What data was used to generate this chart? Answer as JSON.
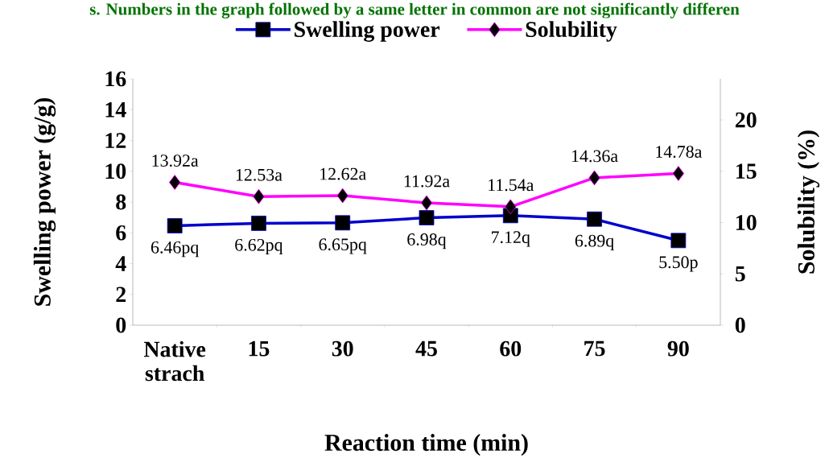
{
  "chart_data": {
    "type": "line",
    "annotations": [
      "s. Numbers in the graph followed by a same letter in common are not significantly differen"
    ],
    "categories": [
      "Native strach",
      "15",
      "30",
      "45",
      "60",
      "75",
      "90"
    ],
    "xlabel": "Reaction time (min)",
    "ylabel": "Swelling power (g/g)",
    "y2label": "Solubility (%)",
    "ylim": [
      0,
      16
    ],
    "yticks": [
      0,
      2,
      4,
      6,
      8,
      10,
      12,
      14,
      16
    ],
    "y2lim": [
      0,
      24
    ],
    "y2ticks": [
      0,
      5,
      10,
      15,
      20
    ],
    "legend": "top",
    "series": [
      {
        "name": "Swelling power",
        "color": "#0000cc",
        "marker": "square",
        "values": [
          6.46,
          6.62,
          6.65,
          6.98,
          7.12,
          6.89,
          5.5
        ],
        "value_labels": [
          "6.46pq",
          "6.62pq",
          "6.65pq",
          "6.98q",
          "7.12q",
          "6.89q",
          "5.50p"
        ]
      },
      {
        "name": "Solubility",
        "color": "#ff00ff",
        "marker": "diamond",
        "axis": "y2",
        "values": [
          13.92,
          12.53,
          12.62,
          11.92,
          11.54,
          14.36,
          14.78
        ],
        "value_labels": [
          "13.92a",
          "12.53a",
          "12.62a",
          "11.92a",
          "11.54a",
          "14.36a",
          "14.78a"
        ]
      }
    ]
  }
}
